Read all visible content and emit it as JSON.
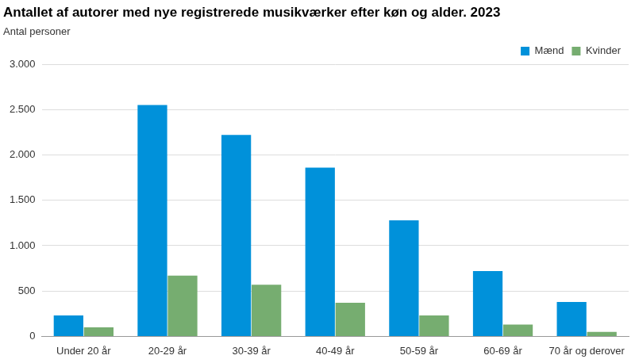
{
  "chart_data": {
    "type": "bar",
    "title": "Antallet af autorer med nye registrerede musikværker efter køn og alder. 2023",
    "y_label": "Antal personer",
    "categories": [
      "Under 20 år",
      "20-29 år",
      "30-39 år",
      "40-49 år",
      "50-59 år",
      "60-69 år",
      "70 år og derover"
    ],
    "series": [
      {
        "name": "Mænd",
        "color": "#0091da",
        "values": [
          230,
          2550,
          2220,
          1860,
          1280,
          720,
          380
        ]
      },
      {
        "name": "Kvinder",
        "color": "#76ad70",
        "values": [
          100,
          670,
          570,
          370,
          230,
          130,
          50
        ]
      }
    ],
    "ylim": [
      0,
      3000
    ],
    "yticks": [
      0,
      500,
      {
        "value": 1000,
        "label": "1.000"
      },
      {
        "value": 1500,
        "label": "1.500"
      },
      {
        "value": 2000,
        "label": "2.000"
      },
      {
        "value": 2500,
        "label": "2.500"
      },
      {
        "value": 3000,
        "label": "3.000"
      }
    ],
    "grid": true,
    "legend": "upper right"
  }
}
